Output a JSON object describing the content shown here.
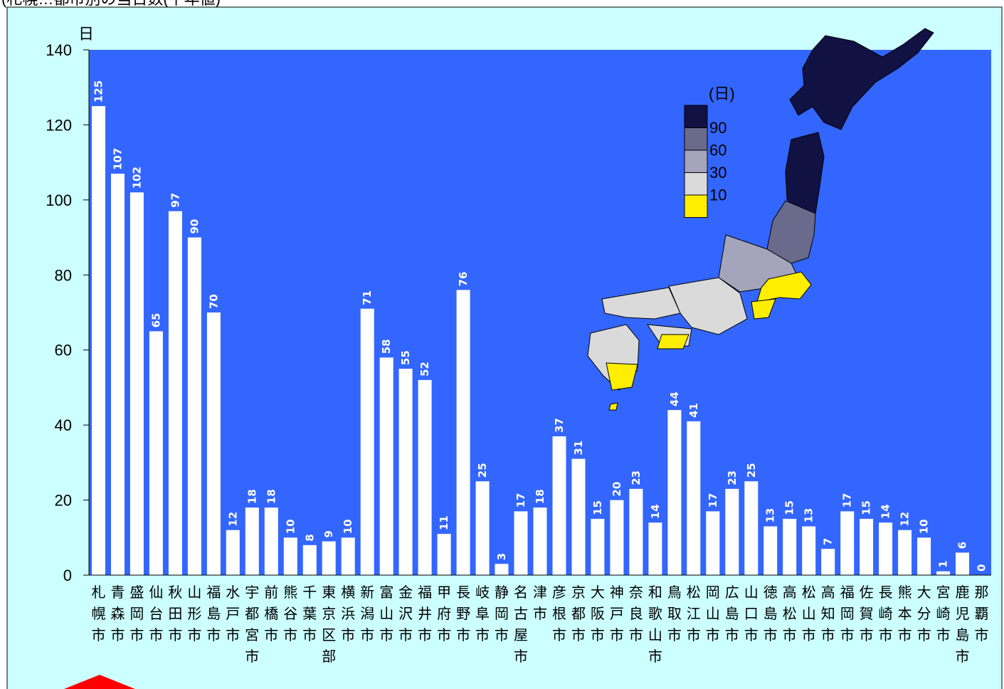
{
  "colors": {
    "plot_bg": "#3366ff",
    "panel_bg": "#ccffff",
    "bar": "#ffffff",
    "map_level_90": "#111144",
    "map_level_60": "#6a6a8c",
    "map_level_30": "#a4a4bc",
    "map_level_10": "#dadada",
    "map_level_0": "#ffee00",
    "marker": "#ff0000"
  },
  "header_text": "(札幌…都市別の当日数(平年値)",
  "map": {
    "legend_unit": "(日)",
    "legend_levels": [
      "90",
      "60",
      "30",
      "10"
    ]
  },
  "chart_data": {
    "type": "bar",
    "ylabel": "日",
    "ylim": [
      0,
      140
    ],
    "yticks": [
      0,
      20,
      40,
      60,
      80,
      100,
      120,
      140
    ],
    "grid": false,
    "categories": [
      "札幌市",
      "青森市",
      "盛岡市",
      "仙台市",
      "秋田市",
      "山形市",
      "福島市",
      "水戸市",
      "宇都宮市",
      "前橋市",
      "熊谷市",
      "千葉市",
      "東京区部",
      "横浜市",
      "新潟市",
      "富山市",
      "金沢市",
      "福井市",
      "甲府市",
      "長野市",
      "岐阜市",
      "静岡市",
      "名古屋市",
      "津市",
      "彦根市",
      "京都市",
      "大阪市",
      "神戸市",
      "奈良市",
      "和歌山市",
      "鳥取市",
      "松江市",
      "岡山市",
      "広島市",
      "山口市",
      "徳島市",
      "高松市",
      "松山市",
      "高知市",
      "福岡市",
      "佐賀市",
      "長崎市",
      "熊本市",
      "大分市",
      "宮崎市",
      "鹿児島市",
      "那覇市"
    ],
    "values": [
      125,
      107,
      102,
      65,
      97,
      90,
      70,
      12,
      18,
      18,
      10,
      8,
      9,
      10,
      71,
      58,
      55,
      52,
      11,
      76,
      25,
      3,
      17,
      18,
      37,
      31,
      15,
      20,
      23,
      14,
      44,
      41,
      17,
      23,
      25,
      13,
      15,
      13,
      7,
      17,
      15,
      14,
      12,
      10,
      1,
      6,
      0
    ]
  }
}
